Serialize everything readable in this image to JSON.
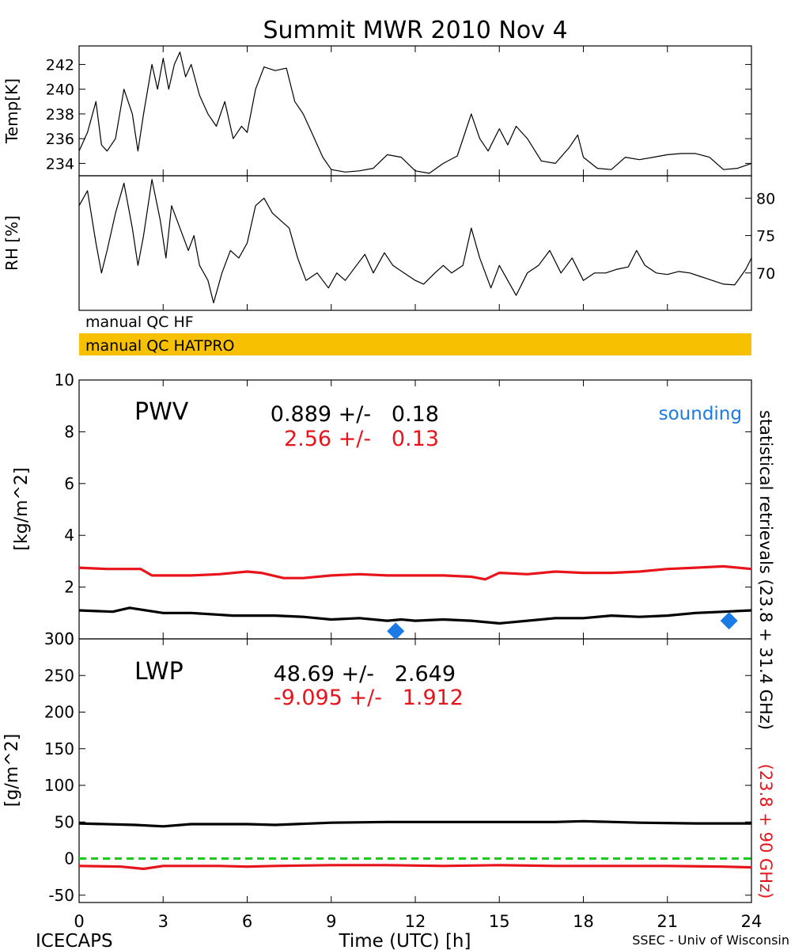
{
  "title": "Summit MWR 2010 Nov  4",
  "footer": {
    "left": "ICECAPS",
    "center": "Time (UTC) [h]",
    "right": "SSEC - Univ of Wisconsin"
  },
  "qc": {
    "hf_label": "manual QC HF",
    "hatpro_label": "manual QC HATPRO",
    "hatpro_color": "#f7c000"
  },
  "right_labels": {
    "statistical": "statistical retrievals (23.8 + 31.4 GHz)",
    "red": "(23.8 + 90 GHz)"
  },
  "colors": {
    "black": "#000000",
    "red": "#e8141b",
    "blue": "#1a7ae6",
    "green": "#1ec81e"
  },
  "chart_data": [
    {
      "type": "line",
      "ylabel": "Temp[K]",
      "ylim": [
        233,
        243.5
      ],
      "yticks": [
        234,
        236,
        238,
        240,
        242
      ],
      "xlim": [
        0,
        24
      ],
      "series": [
        {
          "values": [
            [
              0,
              235
            ],
            [
              0.3,
              236.5
            ],
            [
              0.6,
              239
            ],
            [
              0.8,
              235.5
            ],
            [
              1,
              235
            ],
            [
              1.3,
              236
            ],
            [
              1.6,
              240
            ],
            [
              1.9,
              238
            ],
            [
              2.1,
              235
            ],
            [
              2.3,
              238
            ],
            [
              2.6,
              242
            ],
            [
              2.8,
              240
            ],
            [
              3,
              242.5
            ],
            [
              3.2,
              240
            ],
            [
              3.4,
              242
            ],
            [
              3.6,
              243
            ],
            [
              3.8,
              241
            ],
            [
              4,
              242
            ],
            [
              4.3,
              239.5
            ],
            [
              4.6,
              238
            ],
            [
              4.9,
              237
            ],
            [
              5.2,
              239
            ],
            [
              5.5,
              236
            ],
            [
              5.8,
              237
            ],
            [
              6,
              236.5
            ],
            [
              6.3,
              240
            ],
            [
              6.6,
              241.8
            ],
            [
              7,
              241.5
            ],
            [
              7.4,
              241.7
            ],
            [
              7.7,
              239
            ],
            [
              8,
              238
            ],
            [
              8.3,
              236.5
            ],
            [
              8.7,
              234.5
            ],
            [
              9,
              233.5
            ],
            [
              9.5,
              233.3
            ],
            [
              10,
              233.4
            ],
            [
              10.5,
              233.6
            ],
            [
              11,
              234.7
            ],
            [
              11.5,
              234.5
            ],
            [
              12,
              233.4
            ],
            [
              12.5,
              233.2
            ],
            [
              13,
              234
            ],
            [
              13.5,
              234.6
            ],
            [
              14,
              238
            ],
            [
              14.3,
              236
            ],
            [
              14.6,
              235
            ],
            [
              15,
              236.8
            ],
            [
              15.3,
              235.5
            ],
            [
              15.6,
              237
            ],
            [
              16,
              236
            ],
            [
              16.5,
              234.2
            ],
            [
              17,
              234
            ],
            [
              17.5,
              235.3
            ],
            [
              17.8,
              236.3
            ],
            [
              18,
              234.5
            ],
            [
              18.5,
              233.6
            ],
            [
              19,
              233.5
            ],
            [
              19.5,
              234.5
            ],
            [
              20,
              234.3
            ],
            [
              20.5,
              234.5
            ],
            [
              21,
              234.7
            ],
            [
              21.5,
              234.8
            ],
            [
              22,
              234.8
            ],
            [
              22.5,
              234.5
            ],
            [
              23,
              233.5
            ],
            [
              23.5,
              233.6
            ],
            [
              24,
              234
            ]
          ]
        }
      ]
    },
    {
      "type": "line",
      "ylabel": "RH [%]",
      "ylim": [
        65,
        83
      ],
      "yticks": [
        70,
        75,
        80
      ],
      "xlim": [
        0,
        24
      ],
      "series": [
        {
          "values": [
            [
              0,
              79
            ],
            [
              0.3,
              81
            ],
            [
              0.6,
              74
            ],
            [
              0.8,
              70
            ],
            [
              1,
              73
            ],
            [
              1.3,
              78
            ],
            [
              1.6,
              82
            ],
            [
              1.9,
              76
            ],
            [
              2.1,
              71
            ],
            [
              2.3,
              75
            ],
            [
              2.6,
              82.5
            ],
            [
              2.9,
              77
            ],
            [
              3.1,
              72
            ],
            [
              3.3,
              79
            ],
            [
              3.6,
              76
            ],
            [
              3.9,
              73
            ],
            [
              4.1,
              75
            ],
            [
              4.3,
              71
            ],
            [
              4.6,
              69
            ],
            [
              4.8,
              66
            ],
            [
              5.1,
              70
            ],
            [
              5.4,
              73
            ],
            [
              5.7,
              72
            ],
            [
              6,
              74
            ],
            [
              6.3,
              79
            ],
            [
              6.6,
              80
            ],
            [
              6.9,
              78
            ],
            [
              7.2,
              77
            ],
            [
              7.5,
              76
            ],
            [
              7.8,
              72
            ],
            [
              8.1,
              69
            ],
            [
              8.5,
              70
            ],
            [
              8.9,
              68
            ],
            [
              9.2,
              70
            ],
            [
              9.5,
              69
            ],
            [
              9.9,
              71
            ],
            [
              10.2,
              72.5
            ],
            [
              10.5,
              70
            ],
            [
              10.9,
              72.7
            ],
            [
              11.2,
              71
            ],
            [
              11.6,
              70
            ],
            [
              12,
              69
            ],
            [
              12.3,
              68.5
            ],
            [
              12.7,
              70
            ],
            [
              13,
              71
            ],
            [
              13.3,
              70
            ],
            [
              13.7,
              71
            ],
            [
              14,
              76
            ],
            [
              14.3,
              72
            ],
            [
              14.7,
              68
            ],
            [
              15,
              71
            ],
            [
              15.3,
              69
            ],
            [
              15.6,
              67
            ],
            [
              16,
              70
            ],
            [
              16.4,
              71
            ],
            [
              16.8,
              73
            ],
            [
              17.2,
              70
            ],
            [
              17.6,
              72
            ],
            [
              18,
              69
            ],
            [
              18.4,
              70
            ],
            [
              18.8,
              70
            ],
            [
              19.2,
              70.5
            ],
            [
              19.6,
              70.8
            ],
            [
              19.9,
              73
            ],
            [
              20.2,
              71
            ],
            [
              20.6,
              70
            ],
            [
              21,
              69.8
            ],
            [
              21.4,
              70.2
            ],
            [
              21.8,
              70
            ],
            [
              22.2,
              69.5
            ],
            [
              22.6,
              69
            ],
            [
              23,
              68.5
            ],
            [
              23.4,
              68.4
            ],
            [
              23.8,
              70.5
            ],
            [
              24,
              72
            ]
          ]
        }
      ]
    },
    {
      "type": "line",
      "ylabel": "[kg/m^2]",
      "ylim": [
        0,
        10
      ],
      "yticks": [
        0,
        2,
        4,
        6,
        8,
        10
      ],
      "xlim": [
        0,
        24
      ],
      "xticks": [
        0,
        3,
        6,
        9,
        12,
        15,
        18,
        21,
        24
      ],
      "annotation_name": "PWV",
      "stats": [
        {
          "text": "0.889 +/-   0.18",
          "color": "#000000"
        },
        {
          "text": "2.56 +/-   0.13",
          "color": "#e8141b"
        }
      ],
      "legend_sounding": "sounding",
      "series": [
        {
          "color": "#000000",
          "values": [
            [
              0,
              1.1
            ],
            [
              1.2,
              1.05
            ],
            [
              1.8,
              1.2
            ],
            [
              3,
              1.0
            ],
            [
              4,
              1.0
            ],
            [
              5.5,
              0.9
            ],
            [
              7,
              0.9
            ],
            [
              8,
              0.85
            ],
            [
              9,
              0.75
            ],
            [
              10,
              0.8
            ],
            [
              11,
              0.7
            ],
            [
              11.5,
              0.75
            ],
            [
              12,
              0.7
            ],
            [
              13,
              0.75
            ],
            [
              14,
              0.7
            ],
            [
              15,
              0.6
            ],
            [
              16,
              0.7
            ],
            [
              17,
              0.8
            ],
            [
              18,
              0.8
            ],
            [
              19,
              0.9
            ],
            [
              20,
              0.85
            ],
            [
              21,
              0.9
            ],
            [
              22,
              1.0
            ],
            [
              23,
              1.05
            ],
            [
              24,
              1.1
            ]
          ]
        },
        {
          "color": "#e8141b",
          "values": [
            [
              0,
              2.75
            ],
            [
              1,
              2.7
            ],
            [
              2.2,
              2.7
            ],
            [
              2.6,
              2.45
            ],
            [
              4,
              2.45
            ],
            [
              5,
              2.5
            ],
            [
              6,
              2.6
            ],
            [
              6.5,
              2.55
            ],
            [
              7.3,
              2.35
            ],
            [
              8,
              2.35
            ],
            [
              9,
              2.45
            ],
            [
              10,
              2.5
            ],
            [
              11,
              2.45
            ],
            [
              12,
              2.45
            ],
            [
              13,
              2.45
            ],
            [
              14,
              2.4
            ],
            [
              14.5,
              2.3
            ],
            [
              15,
              2.55
            ],
            [
              16,
              2.5
            ],
            [
              17,
              2.6
            ],
            [
              18,
              2.55
            ],
            [
              19,
              2.55
            ],
            [
              20,
              2.6
            ],
            [
              21,
              2.7
            ],
            [
              22,
              2.75
            ],
            [
              23,
              2.8
            ],
            [
              24,
              2.7
            ]
          ]
        }
      ],
      "sounding_points": [
        [
          11.3,
          0.3
        ],
        [
          23.2,
          0.7
        ]
      ]
    },
    {
      "type": "line",
      "ylabel": "[g/m^2]",
      "ylim": [
        -60,
        300
      ],
      "yticks": [
        -50,
        0,
        50,
        100,
        150,
        200,
        250,
        300
      ],
      "xlim": [
        0,
        24
      ],
      "xticks": [
        0,
        3,
        6,
        9,
        12,
        15,
        18,
        21,
        24
      ],
      "annotation_name": "LWP",
      "stats": [
        {
          "text": "48.69 +/-   2.649",
          "color": "#000000"
        },
        {
          "text": "-9.095 +/-   1.912",
          "color": "#e8141b"
        }
      ],
      "zero_line": 0,
      "series": [
        {
          "color": "#000000",
          "values": [
            [
              0,
              48
            ],
            [
              2,
              46
            ],
            [
              3,
              44
            ],
            [
              4,
              47
            ],
            [
              6,
              47
            ],
            [
              7,
              46
            ],
            [
              9,
              49
            ],
            [
              11,
              50
            ],
            [
              13,
              50
            ],
            [
              15,
              50
            ],
            [
              17,
              50
            ],
            [
              18,
              51
            ],
            [
              20,
              49
            ],
            [
              22,
              48
            ],
            [
              24,
              48
            ]
          ]
        },
        {
          "color": "#e8141b",
          "values": [
            [
              0,
              -10
            ],
            [
              1.5,
              -11
            ],
            [
              2.3,
              -14
            ],
            [
              3,
              -10
            ],
            [
              5,
              -10
            ],
            [
              6,
              -11
            ],
            [
              7,
              -10
            ],
            [
              9,
              -9
            ],
            [
              11,
              -9
            ],
            [
              13,
              -10
            ],
            [
              15,
              -9
            ],
            [
              17,
              -10
            ],
            [
              19,
              -10
            ],
            [
              21,
              -10
            ],
            [
              23,
              -11
            ],
            [
              24,
              -12
            ]
          ]
        }
      ]
    }
  ]
}
